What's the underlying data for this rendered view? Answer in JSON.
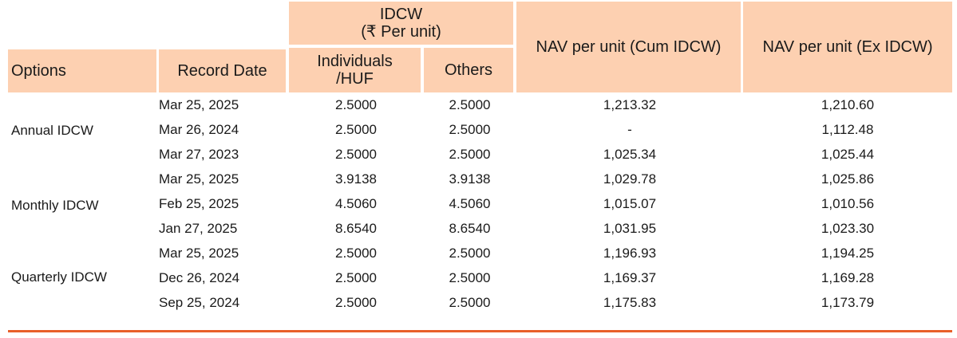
{
  "table": {
    "headers": {
      "options": "Options",
      "record_date": "Record Date",
      "idcw_group": "IDCW",
      "idcw_unit": "(₹ Per unit)",
      "individuals_line1": "Individuals",
      "individuals_line2": "/HUF",
      "others": "Others",
      "nav_cum": "NAV per unit (Cum IDCW)",
      "nav_ex": "NAV per unit (Ex IDCW)"
    },
    "groups": [
      {
        "option": "Annual IDCW",
        "rows": [
          {
            "date": "Mar 25, 2025",
            "individuals": "2.5000",
            "others": "2.5000",
            "nav_cum": "1,213.32",
            "nav_ex": "1,210.60"
          },
          {
            "date": "Mar 26, 2024",
            "individuals": "2.5000",
            "others": "2.5000",
            "nav_cum": "-",
            "nav_ex": "1,112.48"
          },
          {
            "date": "Mar 27, 2023",
            "individuals": "2.5000",
            "others": "2.5000",
            "nav_cum": "1,025.34",
            "nav_ex": "1,025.44"
          }
        ]
      },
      {
        "option": "Monthly IDCW",
        "rows": [
          {
            "date": "Mar 25, 2025",
            "individuals": "3.9138",
            "others": "3.9138",
            "nav_cum": "1,029.78",
            "nav_ex": "1,025.86"
          },
          {
            "date": "Feb 25, 2025",
            "individuals": "4.5060",
            "others": "4.5060",
            "nav_cum": "1,015.07",
            "nav_ex": "1,010.56"
          },
          {
            "date": "Jan 27, 2025",
            "individuals": "8.6540",
            "others": "8.6540",
            "nav_cum": "1,031.95",
            "nav_ex": "1,023.30"
          }
        ]
      },
      {
        "option": "Quarterly IDCW",
        "rows": [
          {
            "date": "Mar 25, 2025",
            "individuals": "2.5000",
            "others": "2.5000",
            "nav_cum": "1,196.93",
            "nav_ex": "1,194.25"
          },
          {
            "date": "Dec 26, 2024",
            "individuals": "2.5000",
            "others": "2.5000",
            "nav_cum": "1,169.37",
            "nav_ex": "1,169.28"
          },
          {
            "date": "Sep 25, 2024",
            "individuals": "2.5000",
            "others": "2.5000",
            "nav_cum": "1,175.83",
            "nav_ex": "1,173.79"
          }
        ]
      }
    ]
  },
  "colors": {
    "header_bg": "#fdd0b1",
    "rule": "#e8602a"
  }
}
